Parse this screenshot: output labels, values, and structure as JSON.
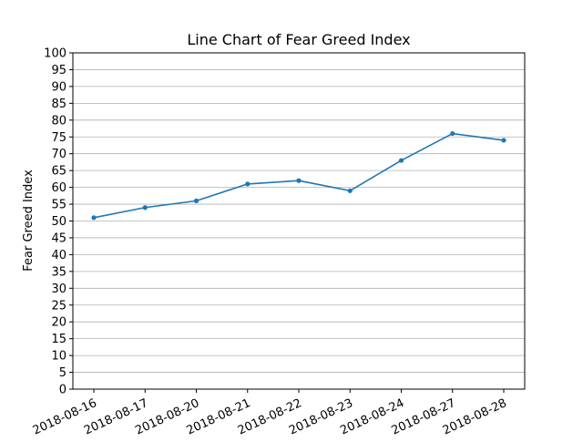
{
  "chart_data": {
    "type": "line",
    "title": "Line Chart of Fear Greed Index",
    "xlabel": "",
    "ylabel": "Fear Greed Index",
    "categories": [
      "2018-08-16",
      "2018-08-17",
      "2018-08-20",
      "2018-08-21",
      "2018-08-22",
      "2018-08-23",
      "2018-08-24",
      "2018-08-27",
      "2018-08-28"
    ],
    "series": [
      {
        "values": [
          51,
          54,
          56,
          61,
          62,
          59,
          68,
          76,
          74
        ],
        "color": "#1f77b4",
        "marker": "point"
      }
    ],
    "ylim": [
      0,
      100
    ],
    "yticks": [
      0,
      5,
      10,
      15,
      20,
      25,
      30,
      35,
      40,
      45,
      50,
      55,
      60,
      65,
      70,
      75,
      80,
      85,
      90,
      95,
      100
    ],
    "grid": "horizontal",
    "xtick_rotation_deg": 25
  },
  "colors": {
    "grid": "#b0b0b0",
    "axes": "#000000",
    "line": "#1f77b4"
  }
}
